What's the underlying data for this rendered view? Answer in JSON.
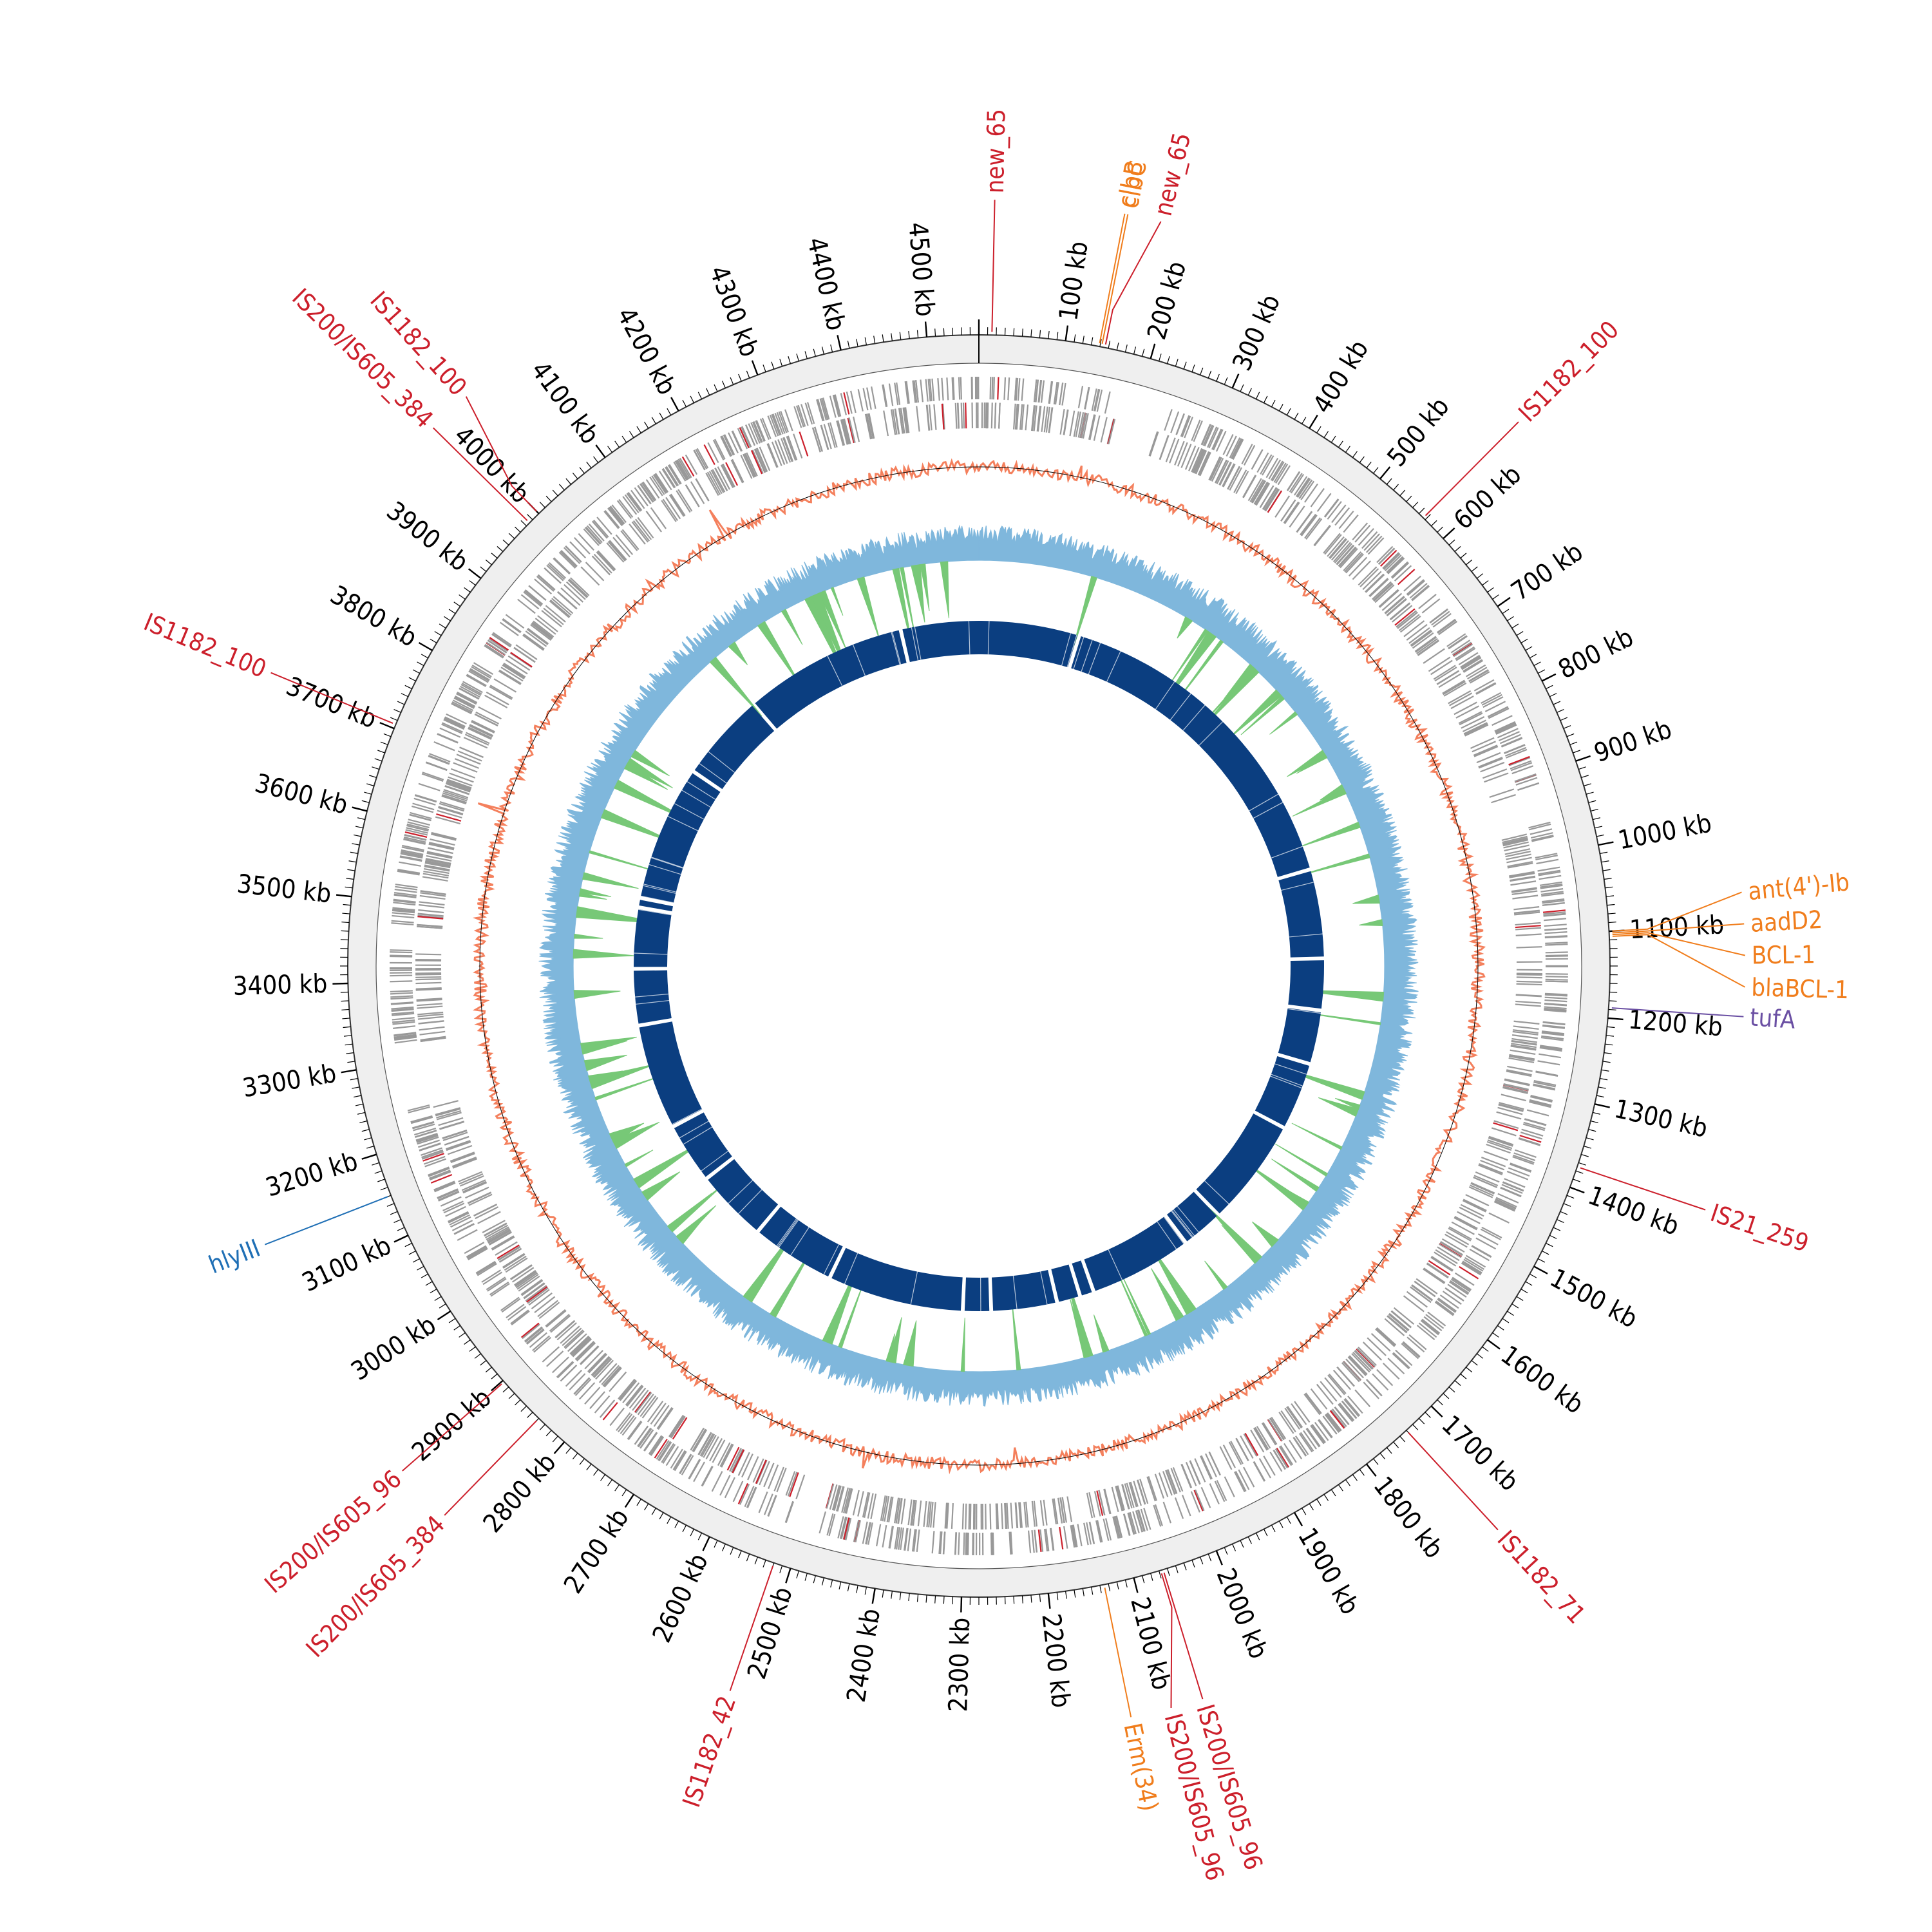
{
  "genome": {
    "length_kb": 4560,
    "tick_step_kb": 100,
    "tick_labels": [
      "100 kb",
      "200 kb",
      "300 kb",
      "400 kb",
      "500 kb",
      "600 kb",
      "700 kb",
      "800 kb",
      "900 kb",
      "1000 kb",
      "1100 kb",
      "1200 kb",
      "1300 kb",
      "1400 kb",
      "1500 kb",
      "1600 kb",
      "1700 kb",
      "1800 kb",
      "1900 kb",
      "2000 kb",
      "2100 kb",
      "2200 kb",
      "2300 kb",
      "2400 kb",
      "2500 kb",
      "2600 kb",
      "2700 kb",
      "2800 kb",
      "2900 kb",
      "3000 kb",
      "3100 kb",
      "3200 kb",
      "3300 kb",
      "3400 kb",
      "3500 kb",
      "3600 kb",
      "3700 kb",
      "3800 kb",
      "3900 kb",
      "4000 kb",
      "4100 kb",
      "4200 kb",
      "4300 kb",
      "4400 kb",
      "4500 kb"
    ]
  },
  "colors": {
    "insertion_sequence": "#cc1f2b",
    "resistance_gene": "#f07d1c",
    "virulence_gene": "#1f6fb5",
    "other_gene": "#6a4fa3",
    "cds_track": "#999999",
    "gc_skew_positive": "#f4805d",
    "gc_skew_negative": "#000000",
    "gc_content": "#7fb7dc",
    "gc_dip": "#77c877",
    "blast_ring": "#0b3e80",
    "outer_band": "#efefef"
  },
  "annotations": [
    {
      "label": "new_65",
      "category": "insertion_sequence",
      "position_kb": 15
    },
    {
      "label": "clbB",
      "category": "resistance_gene",
      "position_kb": 139
    },
    {
      "label": "clbC",
      "category": "resistance_gene",
      "position_kb": 142
    },
    {
      "label": "new_65",
      "category": "insertion_sequence",
      "position_kb": 146
    },
    {
      "label": "IS1182_100",
      "category": "insertion_sequence",
      "position_kb": 567
    },
    {
      "label": "ant(4')-Ib",
      "category": "resistance_gene",
      "position_kb": 1100
    },
    {
      "label": "aadD2",
      "category": "resistance_gene",
      "position_kb": 1102
    },
    {
      "label": "BCL-1",
      "category": "resistance_gene",
      "position_kb": 1104
    },
    {
      "label": "blaBCL-1",
      "category": "resistance_gene",
      "position_kb": 1106
    },
    {
      "label": "tufA",
      "category": "other_gene",
      "position_kb": 1188
    },
    {
      "label": "IS21_259",
      "category": "insertion_sequence",
      "position_kb": 1375
    },
    {
      "label": "IS1182_71",
      "category": "insertion_sequence",
      "position_kb": 1740
    },
    {
      "label": "IS200/IS605_96",
      "category": "insertion_sequence",
      "position_kb": 2065
    },
    {
      "label": "IS200/IS605_96",
      "category": "insertion_sequence",
      "position_kb": 2068
    },
    {
      "label": "Erm(34)",
      "category": "resistance_gene",
      "position_kb": 2135
    },
    {
      "label": "IS1182_42",
      "category": "insertion_sequence",
      "position_kb": 2520
    },
    {
      "label": "IS200/IS605_384",
      "category": "insertion_sequence",
      "position_kb": 2840
    },
    {
      "label": "IS200/IS605_96",
      "category": "insertion_sequence",
      "position_kb": 2898
    },
    {
      "label": "hlyIII",
      "category": "virulence_gene",
      "position_kb": 3150
    },
    {
      "label": "IS1182_100",
      "category": "insertion_sequence",
      "position_kb": 3705
    },
    {
      "label": "IS200/IS605_384",
      "category": "insertion_sequence",
      "position_kb": 3985
    },
    {
      "label": "IS1182_100",
      "category": "insertion_sequence",
      "position_kb": 4000
    }
  ],
  "blast_gaps_kb": [
    210,
    930,
    1120,
    1230,
    1345,
    1490,
    1720,
    1810,
    2030,
    2060,
    2110,
    2250,
    2310,
    2600,
    2780,
    2935,
    3065,
    3290,
    3410,
    3540,
    3560,
    3850,
    4040,
    4390
  ]
}
